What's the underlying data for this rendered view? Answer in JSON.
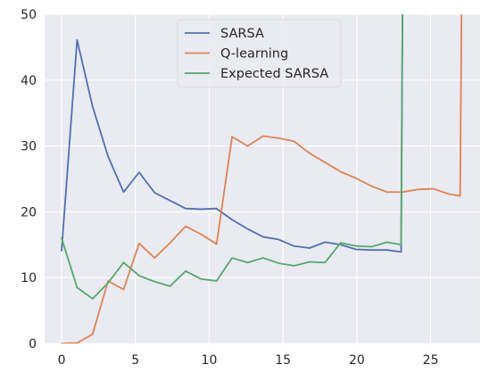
{
  "chart_data": {
    "type": "line",
    "title": "",
    "xlabel": "",
    "ylabel": "",
    "xlim": [
      -1.15,
      28.35
    ],
    "ylim": [
      0,
      50
    ],
    "xticks": [
      0,
      5,
      10,
      15,
      20,
      25
    ],
    "yticks": [
      0,
      10,
      20,
      30,
      40,
      50
    ],
    "grid": true,
    "legend_position": "top-center",
    "background": "#eaeaf2",
    "series": [
      {
        "name": "SARSA",
        "color": "#4c72b0",
        "x": [
          0,
          1.05,
          2.1,
          3.15,
          4.2,
          5.25,
          6.3,
          7.35,
          8.4,
          9.45,
          10.5,
          11.55,
          12.6,
          13.65,
          14.7,
          15.75,
          16.8,
          17.85,
          18.9,
          19.95,
          21,
          22.05,
          23,
          23.1
        ],
        "y": [
          14.1,
          46.1,
          36,
          28.4,
          23,
          26,
          22.9,
          21.7,
          20.5,
          20.4,
          20.5,
          18.8,
          17.4,
          16.2,
          15.8,
          14.8,
          14.5,
          15.4,
          15,
          14.3,
          14.2,
          14.2,
          13.9,
          52
        ]
      },
      {
        "name": "Q-learning",
        "color": "#dd8452",
        "x": [
          0,
          1.05,
          2.1,
          3.15,
          4.2,
          5.25,
          6.3,
          7.35,
          8.4,
          9.45,
          10.5,
          11.55,
          12.6,
          13.65,
          14.7,
          15.75,
          16.8,
          17.85,
          18.9,
          19.95,
          21,
          22.05,
          23.1,
          24.15,
          25.2,
          26.25,
          27,
          27.1
        ],
        "y": [
          0,
          0.1,
          1.4,
          9.5,
          8.2,
          15.2,
          13,
          15.3,
          17.8,
          16.6,
          15.1,
          31.4,
          30,
          31.5,
          31.2,
          30.7,
          28.9,
          27.5,
          26.1,
          25.1,
          23.9,
          23,
          23,
          23.4,
          23.5,
          22.7,
          22.4,
          52
        ]
      },
      {
        "name": "Expected SARSA",
        "color": "#55a868",
        "x": [
          0,
          1.05,
          2.1,
          3.15,
          4.2,
          5.25,
          6.3,
          7.35,
          8.4,
          9.45,
          10.5,
          11.55,
          12.6,
          13.65,
          14.7,
          15.75,
          16.8,
          17.85,
          18.9,
          19.95,
          21,
          22.05,
          23,
          23.1
        ],
        "y": [
          16,
          8.5,
          6.8,
          9.2,
          12.3,
          10.3,
          9.4,
          8.7,
          11,
          9.8,
          9.5,
          13,
          12.3,
          13,
          12.2,
          11.8,
          12.4,
          12.3,
          15.3,
          14.8,
          14.7,
          15.4,
          15,
          52
        ]
      }
    ]
  }
}
